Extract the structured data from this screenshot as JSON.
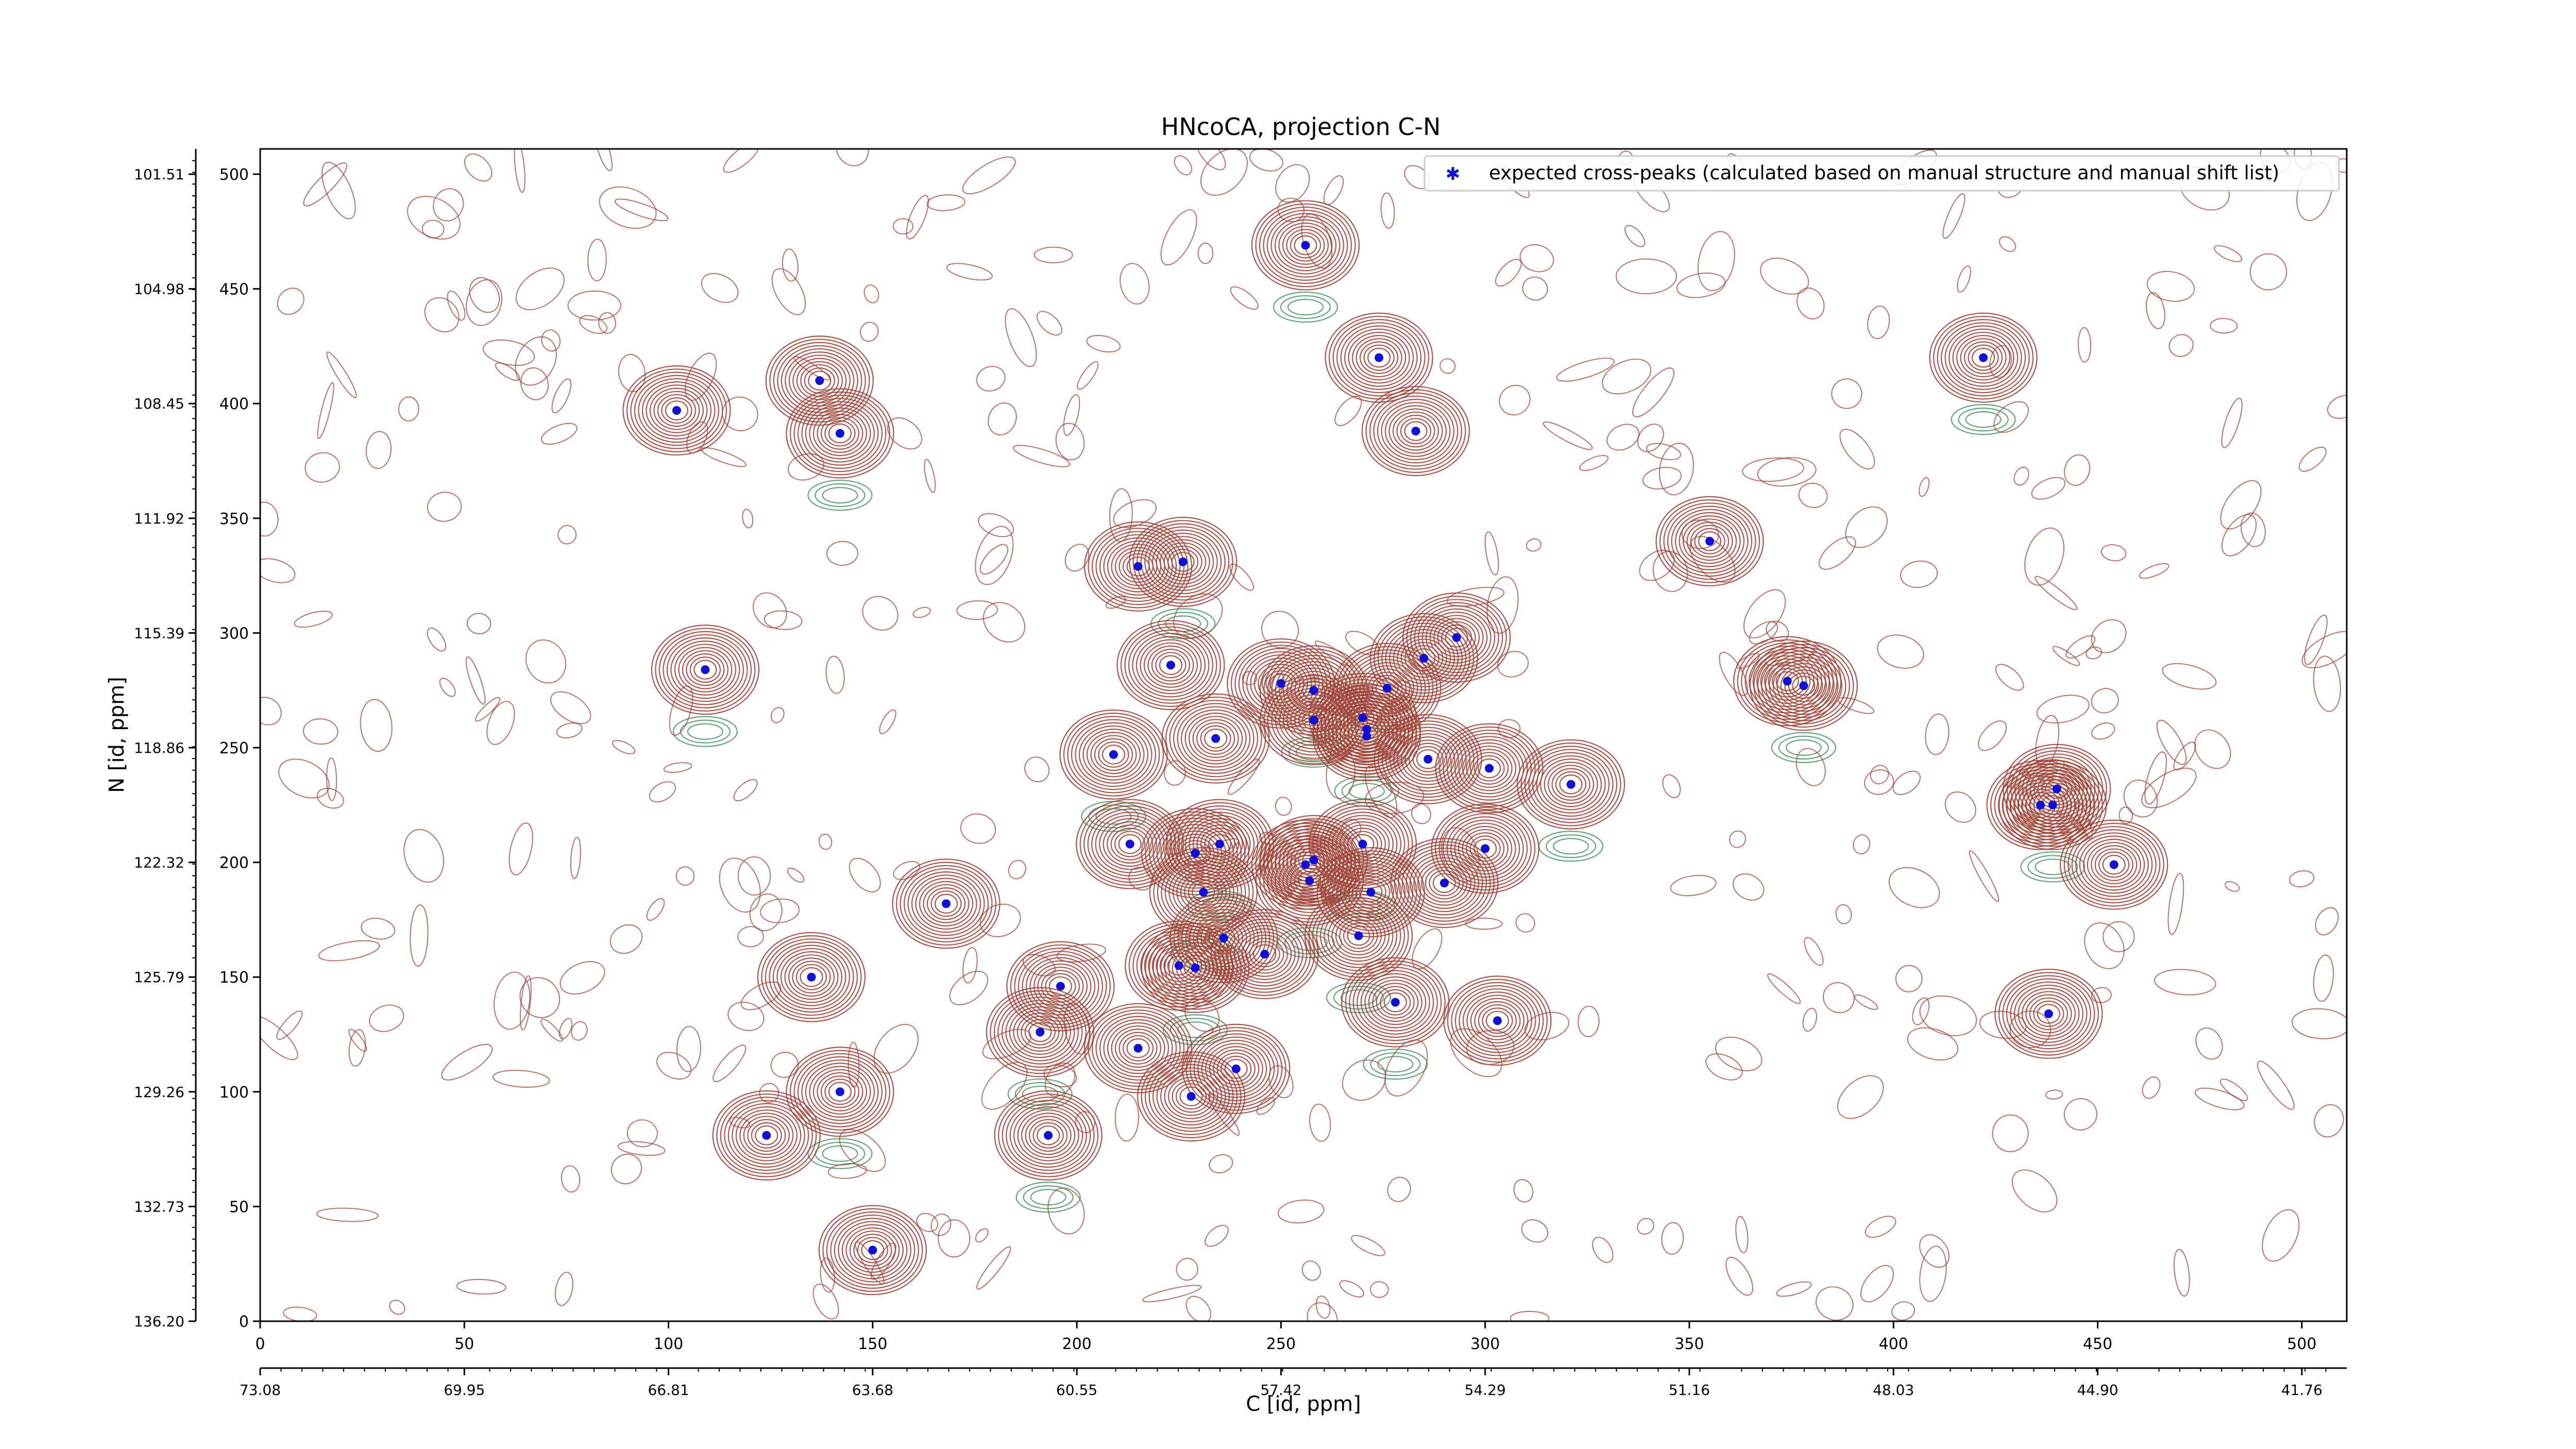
{
  "chart_data": {
    "type": "scatter",
    "title": "HNcoCA, projection C-N",
    "xlabel": "C [id, ppm]",
    "ylabel": "N [id, ppm]",
    "xlim": [
      0,
      511
    ],
    "ylim": [
      0,
      511
    ],
    "x_ticks": [
      0,
      50,
      100,
      150,
      200,
      250,
      300,
      350,
      400,
      450,
      500
    ],
    "y_ticks": [
      0,
      50,
      100,
      150,
      200,
      250,
      300,
      350,
      400,
      450,
      500
    ],
    "x_ppm_ticks": [
      "73.08",
      "69.95",
      "66.81",
      "63.68",
      "60.55",
      "57.42",
      "54.29",
      "51.16",
      "48.03",
      "44.90",
      "41.76"
    ],
    "y_ppm_ticks": [
      "136.20",
      "132.73",
      "129.26",
      "125.79",
      "122.32",
      "118.86",
      "115.39",
      "111.92",
      "108.45",
      "104.98",
      "101.51"
    ],
    "legend": {
      "position": "top-right",
      "label": "expected cross-peaks (calculated based on manual structure and manual shift list)"
    },
    "colors": {
      "contour_positive": "#a0453a",
      "contour_negative": "#3f8f5a",
      "marker": "#1010d8"
    },
    "series": [
      {
        "name": "expected cross-peaks (calculated based on manual structure and manual shift list)",
        "points": [
          [
            256,
            469
          ],
          [
            274,
            420
          ],
          [
            283,
            388
          ],
          [
            422,
            420
          ],
          [
            102,
            397
          ],
          [
            137,
            410
          ],
          [
            142,
            387
          ],
          [
            355,
            340
          ],
          [
            215,
            329
          ],
          [
            226,
            331
          ],
          [
            293,
            298
          ],
          [
            285,
            289
          ],
          [
            109,
            284
          ],
          [
            223,
            286
          ],
          [
            250,
            278
          ],
          [
            258,
            275
          ],
          [
            276,
            276
          ],
          [
            374,
            279
          ],
          [
            378,
            277
          ],
          [
            258,
            262
          ],
          [
            270,
            263
          ],
          [
            271,
            258
          ],
          [
            271,
            255
          ],
          [
            234,
            254
          ],
          [
            209,
            247
          ],
          [
            286,
            245
          ],
          [
            301,
            241
          ],
          [
            321,
            234
          ],
          [
            440,
            232
          ],
          [
            436,
            225
          ],
          [
            439,
            225
          ],
          [
            213,
            208
          ],
          [
            229,
            204
          ],
          [
            235,
            208
          ],
          [
            258,
            201
          ],
          [
            256,
            199
          ],
          [
            270,
            208
          ],
          [
            300,
            206
          ],
          [
            454,
            199
          ],
          [
            257,
            192
          ],
          [
            290,
            191
          ],
          [
            272,
            187
          ],
          [
            231,
            187
          ],
          [
            168,
            182
          ],
          [
            236,
            167
          ],
          [
            269,
            168
          ],
          [
            246,
            160
          ],
          [
            225,
            155
          ],
          [
            229,
            154
          ],
          [
            135,
            150
          ],
          [
            196,
            146
          ],
          [
            278,
            139
          ],
          [
            303,
            131
          ],
          [
            438,
            134
          ],
          [
            191,
            126
          ],
          [
            215,
            119
          ],
          [
            239,
            110
          ],
          [
            142,
            100
          ],
          [
            228,
            98
          ],
          [
            124,
            81
          ],
          [
            193,
            81
          ],
          [
            150,
            31
          ]
        ]
      }
    ]
  }
}
